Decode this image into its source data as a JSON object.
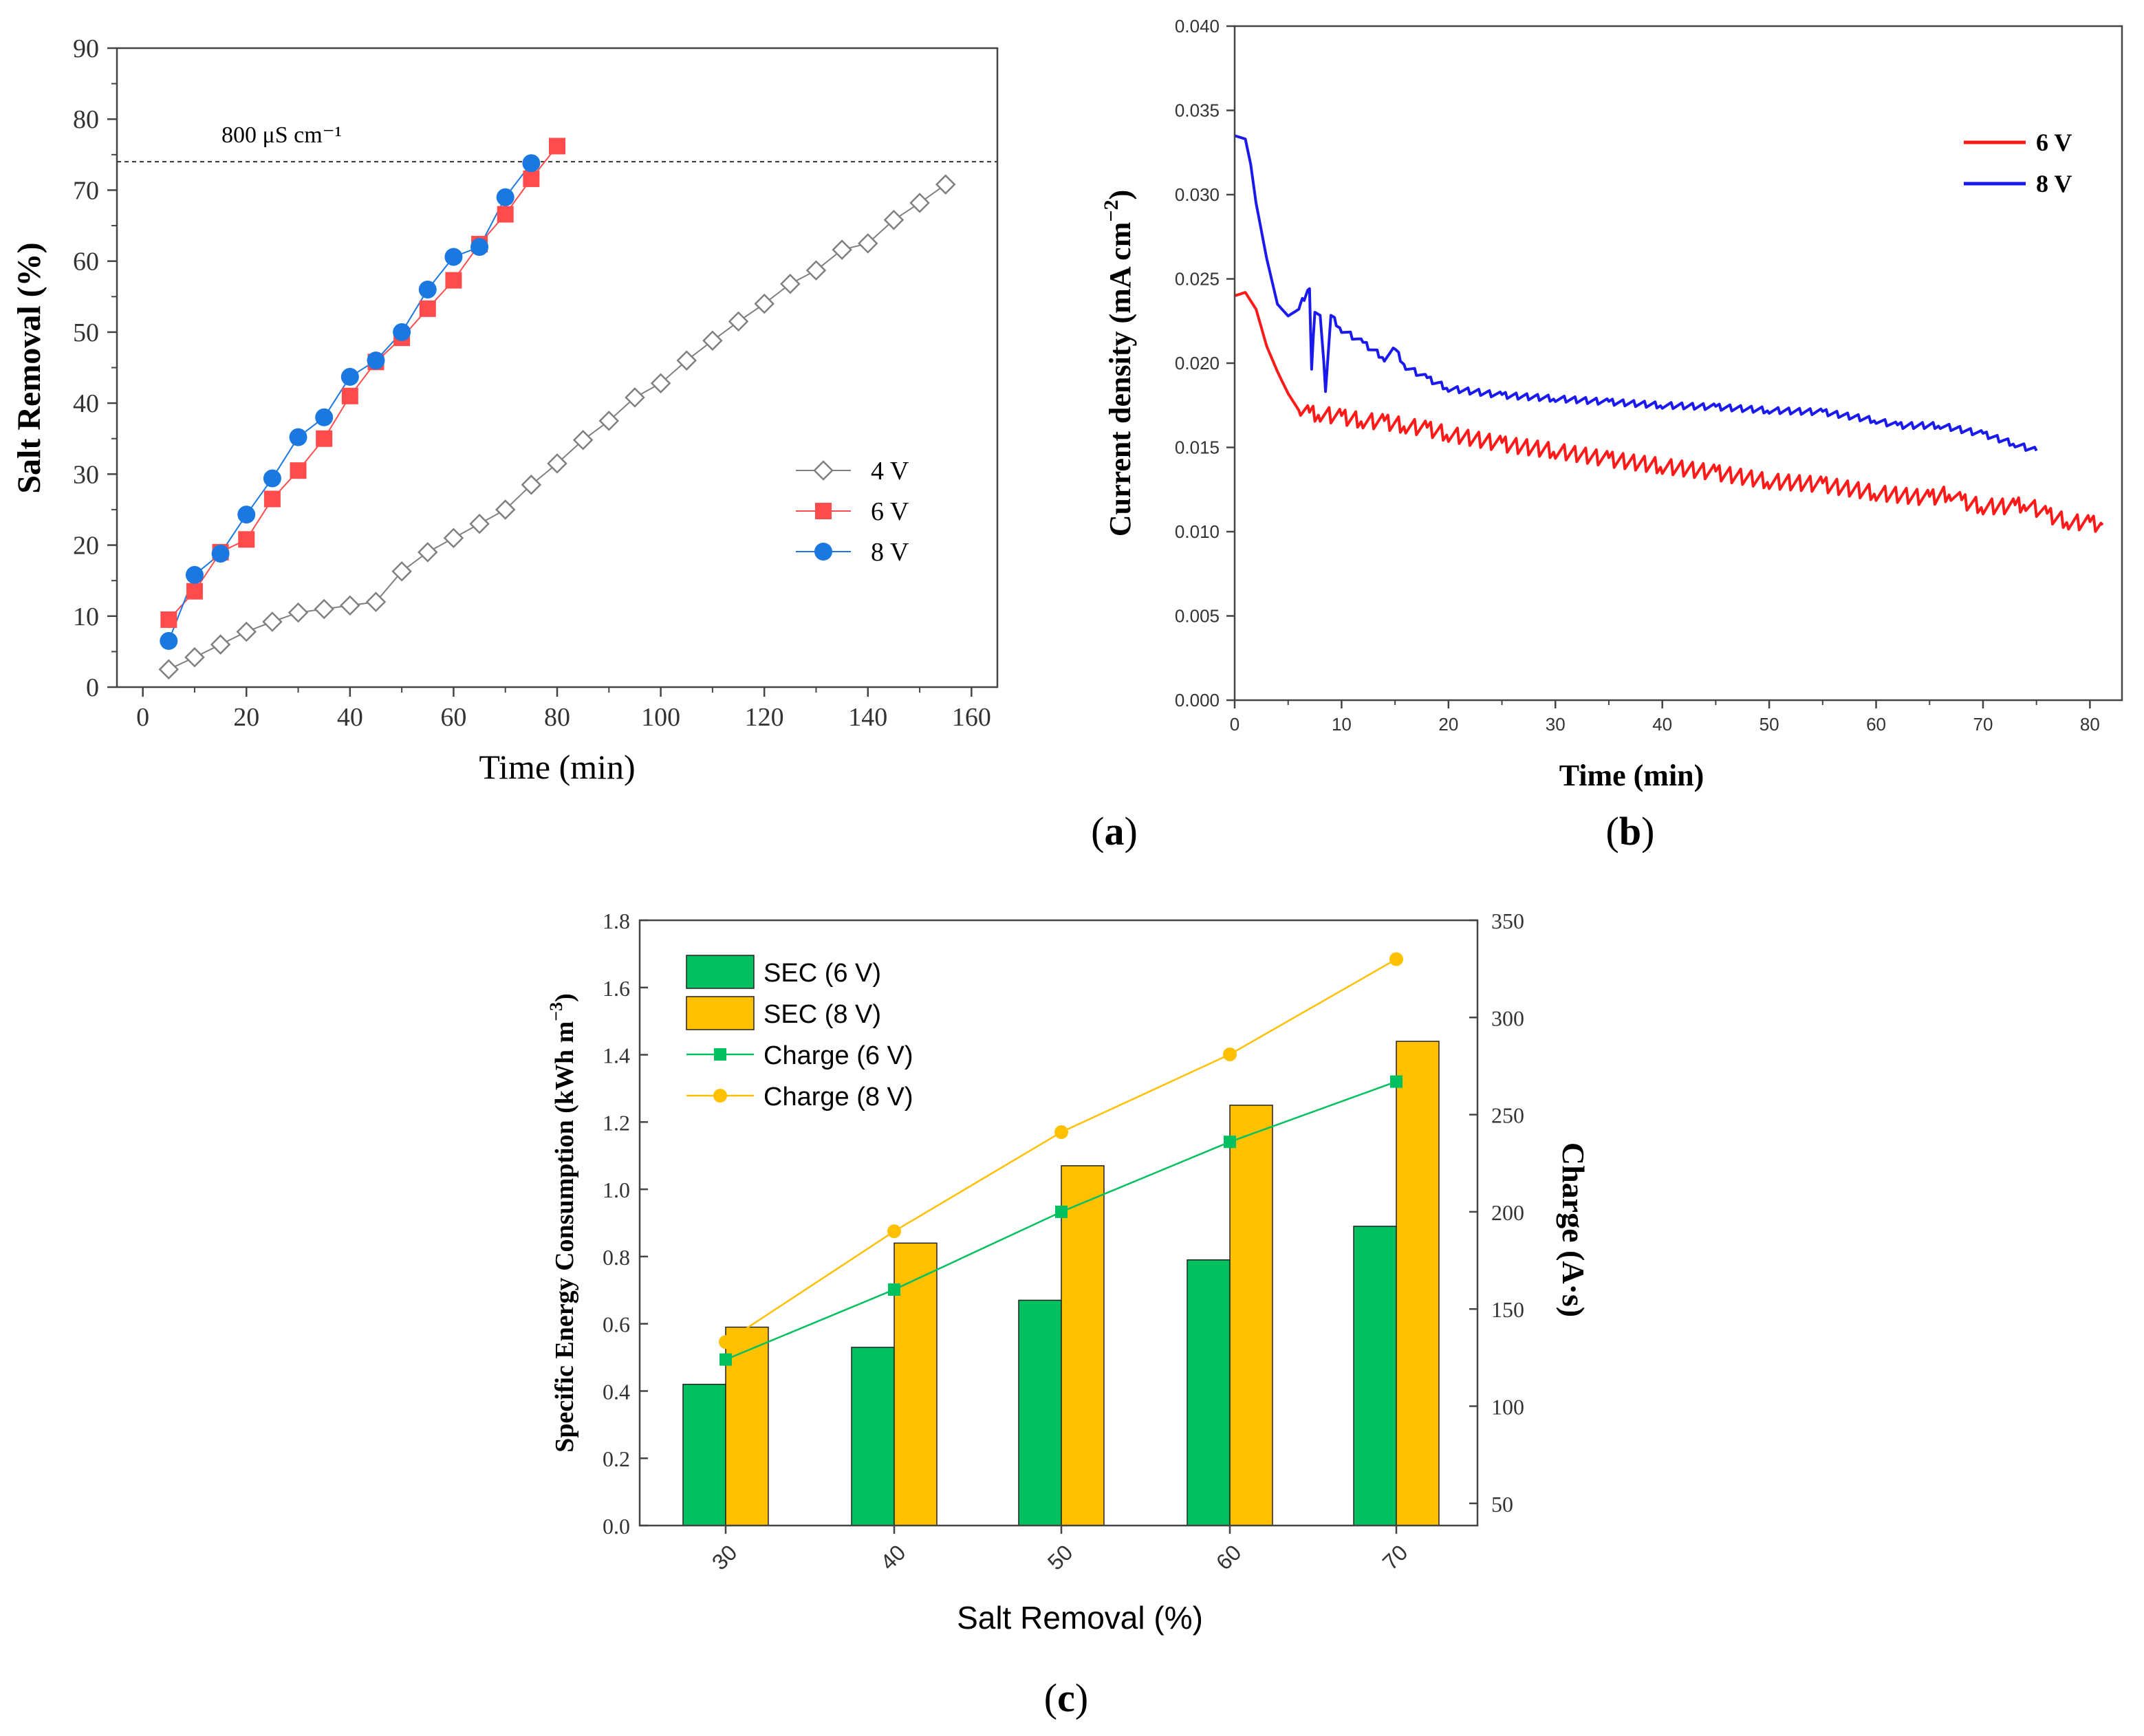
{
  "chart_data": [
    {
      "id": "a",
      "type": "line",
      "panel_label": "a",
      "xlabel": "Time (min)",
      "ylabel": "Salt Removal (%)",
      "xlim": [
        -5,
        165
      ],
      "ylim": [
        0,
        90
      ],
      "xticks": [
        "0",
        "20",
        "40",
        "60",
        "80",
        "100",
        "120",
        "140",
        "160"
      ],
      "yticks": [
        "0",
        "10",
        "20",
        "30",
        "40",
        "50",
        "60",
        "70",
        "80",
        "90"
      ],
      "reference_line": {
        "y": 74,
        "label": "800 μS cm⁻¹"
      },
      "legend": [
        "4 V",
        "6 V",
        "8 V"
      ],
      "series": [
        {
          "name": "4 V",
          "color": "#808080",
          "marker": "diamond-open",
          "x": [
            5,
            10,
            15,
            20,
            25,
            30,
            35,
            40,
            45,
            50,
            55,
            60,
            65,
            70,
            75,
            80,
            85,
            90,
            95,
            100,
            105,
            110,
            115,
            120,
            125,
            130,
            135,
            140,
            145,
            150,
            155
          ],
          "y": [
            2.5,
            4.2,
            6.0,
            7.8,
            9.2,
            10.5,
            11.0,
            11.5,
            12.0,
            16.3,
            19.0,
            21.0,
            23.0,
            25.0,
            28.5,
            31.5,
            34.8,
            37.5,
            40.8,
            42.8,
            46.0,
            48.8,
            51.5,
            54.0,
            56.8,
            58.7,
            61.6,
            62.5,
            65.8,
            68.2,
            70.8
          ]
        },
        {
          "name": "6 V",
          "color": "#ff4b4b",
          "marker": "square",
          "x": [
            5,
            10,
            15,
            20,
            25,
            30,
            35,
            40,
            45,
            50,
            55,
            60,
            65,
            70,
            75,
            80
          ],
          "y": [
            9.5,
            13.5,
            19.0,
            20.8,
            26.5,
            30.5,
            35.0,
            41.0,
            45.8,
            49.2,
            53.3,
            57.3,
            62.4,
            66.6,
            71.6,
            76.2
          ]
        },
        {
          "name": "8 V",
          "color": "#1a78e0",
          "marker": "circle",
          "x": [
            5,
            10,
            15,
            20,
            25,
            30,
            35,
            40,
            45,
            50,
            55,
            60,
            65,
            70,
            75
          ],
          "y": [
            6.5,
            15.8,
            18.8,
            24.3,
            29.4,
            35.2,
            38.0,
            43.7,
            46.0,
            50.0,
            56.0,
            60.6,
            62.0,
            69.0,
            73.8
          ]
        }
      ]
    },
    {
      "id": "b",
      "type": "line",
      "panel_label": "b",
      "xlabel": "Time (min)",
      "ylabel_main": "Current density (mA cm",
      "ylabel_exp": "−2",
      "ylabel_close": ")",
      "xlim": [
        0,
        83
      ],
      "ylim": [
        0,
        0.04
      ],
      "xticks": [
        "0",
        "10",
        "20",
        "30",
        "40",
        "50",
        "60",
        "70",
        "80"
      ],
      "yticks": [
        "0.000",
        "0.005",
        "0.010",
        "0.015",
        "0.020",
        "0.025",
        "0.030",
        "0.035",
        "0.040"
      ],
      "legend": [
        "6 V",
        "8 V"
      ],
      "series": [
        {
          "name": "6 V",
          "color": "#ff1a1a",
          "points": [
            [
              0,
              0.024
            ],
            [
              1,
              0.0242
            ],
            [
              2,
              0.0232
            ],
            [
              3,
              0.021
            ],
            [
              4,
              0.0195
            ],
            [
              5,
              0.0182
            ],
            [
              6,
              0.0172
            ],
            [
              7,
              0.017
            ],
            [
              8,
              0.017
            ],
            [
              10,
              0.0168
            ],
            [
              12,
              0.0166
            ],
            [
              14,
              0.0165
            ],
            [
              16,
              0.0163
            ],
            [
              18,
              0.0161
            ],
            [
              20,
              0.0158
            ],
            [
              25,
              0.0152
            ],
            [
              30,
              0.0148
            ],
            [
              35,
              0.0143
            ],
            [
              40,
              0.0139
            ],
            [
              45,
              0.0135
            ],
            [
              50,
              0.013
            ],
            [
              55,
              0.0128
            ],
            [
              60,
              0.0123
            ],
            [
              65,
              0.012
            ],
            [
              67,
              0.0123
            ],
            [
              68,
              0.0118
            ],
            [
              70,
              0.0115
            ],
            [
              73,
              0.0115
            ],
            [
              74,
              0.0117
            ],
            [
              76,
              0.011
            ],
            [
              78,
              0.0106
            ],
            [
              80,
              0.0105
            ],
            [
              81.2,
              0.0104
            ]
          ]
        },
        {
          "name": "8 V",
          "color": "#1a1aee",
          "points": [
            [
              0,
              0.0335
            ],
            [
              1,
              0.0333
            ],
            [
              1.5,
              0.0318
            ],
            [
              2,
              0.0295
            ],
            [
              3,
              0.0262
            ],
            [
              4,
              0.0235
            ],
            [
              5,
              0.0228
            ],
            [
              6,
              0.0232
            ],
            [
              7,
              0.0246
            ],
            [
              7.2,
              0.0196
            ],
            [
              7.5,
              0.0232
            ],
            [
              8,
              0.0228
            ],
            [
              8.5,
              0.0185
            ],
            [
              9,
              0.0228
            ],
            [
              10,
              0.022
            ],
            [
              12,
              0.0212
            ],
            [
              14,
              0.0203
            ],
            [
              15,
              0.0208
            ],
            [
              16,
              0.0198
            ],
            [
              18,
              0.0191
            ],
            [
              20,
              0.0185
            ],
            [
              25,
              0.0181
            ],
            [
              30,
              0.0179
            ],
            [
              35,
              0.0177
            ],
            [
              40,
              0.0175
            ],
            [
              45,
              0.0174
            ],
            [
              50,
              0.0172
            ],
            [
              55,
              0.0171
            ],
            [
              60,
              0.0166
            ],
            [
              62,
              0.0163
            ],
            [
              66,
              0.0163
            ],
            [
              70,
              0.0158
            ],
            [
              73,
              0.0152
            ],
            [
              75,
              0.0148
            ]
          ]
        }
      ]
    },
    {
      "id": "c",
      "type": "bar",
      "panel_label": "c",
      "xlabel": "Salt Removal (%)",
      "ylabel_left_main": "Specific Energy Consumption (kWh m",
      "ylabel_left_exp": "−3",
      "ylabel_left_close": ")",
      "ylabel_right": "Charge (A·s)",
      "categories": [
        "30",
        "40",
        "50",
        "60",
        "70"
      ],
      "ylim_left": [
        0,
        1.8
      ],
      "ylim_right": [
        38.6,
        350
      ],
      "yticks_left": [
        "0.0",
        "0.2",
        "0.4",
        "0.6",
        "0.8",
        "1.0",
        "1.2",
        "1.4",
        "1.6",
        "1.8"
      ],
      "yticks_right": [
        "50",
        "100",
        "150",
        "200",
        "250",
        "300",
        "350"
      ],
      "bars": [
        {
          "name": "SEC (6 V)",
          "color": "#00c060",
          "values": [
            0.42,
            0.53,
            0.67,
            0.79,
            0.89
          ]
        },
        {
          "name": "SEC (8 V)",
          "color": "#ffc000",
          "values": [
            0.59,
            0.84,
            1.07,
            1.25,
            1.44
          ]
        }
      ],
      "lines": [
        {
          "name": "Charge (6 V)",
          "color": "#00c060",
          "marker": "square",
          "values": [
            124,
            160,
            200,
            236,
            267
          ]
        },
        {
          "name": "Charge (8 V)",
          "color": "#ffc000",
          "marker": "circle",
          "values": [
            133,
            190,
            241,
            281,
            330
          ]
        }
      ],
      "legend": [
        "SEC (6 V)",
        "SEC (8 V)",
        "Charge (6 V)",
        "Charge (8 V)"
      ]
    }
  ]
}
